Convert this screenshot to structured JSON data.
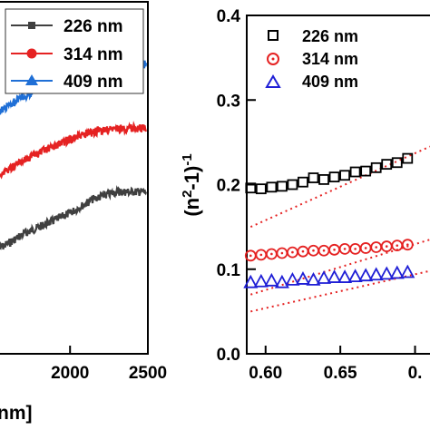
{
  "chart_data": [
    {
      "type": "line",
      "xlabel": "nm]",
      "x_ticks": [
        "2000",
        "2500"
      ],
      "x_tick_values": [
        2000,
        2500
      ],
      "xlim": [
        1550,
        2500
      ],
      "ylim": [
        0,
        1
      ],
      "legend_position": "top-left",
      "series": [
        {
          "name": "226 nm",
          "color": "#404040",
          "marker": "square",
          "x": [
            1550,
            1700,
            1850,
            2000,
            2150,
            2300,
            2400,
            2500
          ],
          "y": [
            0.3,
            0.34,
            0.37,
            0.4,
            0.44,
            0.46,
            0.46,
            0.46
          ]
        },
        {
          "name": "314 nm",
          "color": "#e52222",
          "marker": "circle",
          "x": [
            1550,
            1700,
            1850,
            2000,
            2150,
            2300,
            2400,
            2500
          ],
          "y": [
            0.51,
            0.55,
            0.58,
            0.61,
            0.63,
            0.64,
            0.64,
            0.64
          ]
        },
        {
          "name": "409 nm",
          "color": "#1f6fd6",
          "marker": "triangle",
          "x": [
            1550,
            1700,
            1850,
            2000,
            2150,
            2300,
            2400,
            2500
          ],
          "y": [
            0.69,
            0.73,
            0.77,
            0.8,
            0.82,
            0.83,
            0.83,
            0.82
          ]
        }
      ]
    },
    {
      "type": "scatter",
      "ylabel": "(n2-1)-1",
      "ylabel_parts": {
        "open": "(n",
        "sup1": "2",
        "mid": "-1)",
        "sup2": "-1"
      },
      "x_ticks": [
        "0.60",
        "0.65",
        "0."
      ],
      "x_tick_values": [
        0.6,
        0.65,
        0.7
      ],
      "y_ticks": [
        "0.0",
        "0.1",
        "0.2",
        "0.3",
        "0.4"
      ],
      "y_tick_values": [
        0.0,
        0.1,
        0.2,
        0.3,
        0.4
      ],
      "xlim": [
        0.588,
        0.71
      ],
      "ylim": [
        0.0,
        0.4
      ],
      "legend_position": "top-left",
      "series": [
        {
          "name": "226 nm",
          "color": "#000000",
          "marker": "open-square",
          "x": [
            0.59,
            0.597,
            0.604,
            0.611,
            0.618,
            0.625,
            0.632,
            0.639,
            0.646,
            0.653,
            0.66,
            0.667,
            0.674,
            0.681,
            0.688,
            0.695
          ],
          "y": [
            0.196,
            0.195,
            0.197,
            0.198,
            0.2,
            0.203,
            0.208,
            0.206,
            0.209,
            0.211,
            0.215,
            0.216,
            0.22,
            0.224,
            0.226,
            0.231
          ]
        },
        {
          "name": "314 nm",
          "color": "#e52222",
          "marker": "open-circle",
          "x": [
            0.59,
            0.597,
            0.604,
            0.611,
            0.618,
            0.625,
            0.632,
            0.639,
            0.646,
            0.653,
            0.66,
            0.667,
            0.674,
            0.681,
            0.688,
            0.695
          ],
          "y": [
            0.116,
            0.117,
            0.118,
            0.119,
            0.12,
            0.121,
            0.122,
            0.122,
            0.123,
            0.124,
            0.124,
            0.125,
            0.126,
            0.127,
            0.128,
            0.129
          ]
        },
        {
          "name": "409 nm",
          "color": "#1f1fd6",
          "marker": "open-triangle",
          "x": [
            0.59,
            0.597,
            0.604,
            0.611,
            0.618,
            0.625,
            0.632,
            0.639,
            0.646,
            0.653,
            0.66,
            0.667,
            0.674,
            0.681,
            0.688,
            0.695
          ],
          "y": [
            0.084,
            0.085,
            0.086,
            0.084,
            0.087,
            0.088,
            0.087,
            0.089,
            0.09,
            0.09,
            0.091,
            0.092,
            0.093,
            0.094,
            0.095,
            0.096
          ]
        }
      ],
      "fit_lines": {
        "color": "#e52222",
        "style": "dotted",
        "lines": [
          {
            "x": [
              0.59,
              0.71
            ],
            "y": [
              0.15,
              0.245
            ]
          },
          {
            "x": [
              0.59,
              0.71
            ],
            "y": [
              0.07,
              0.135
            ]
          },
          {
            "x": [
              0.59,
              0.71
            ],
            "y": [
              0.05,
              0.098
            ]
          }
        ]
      }
    }
  ]
}
